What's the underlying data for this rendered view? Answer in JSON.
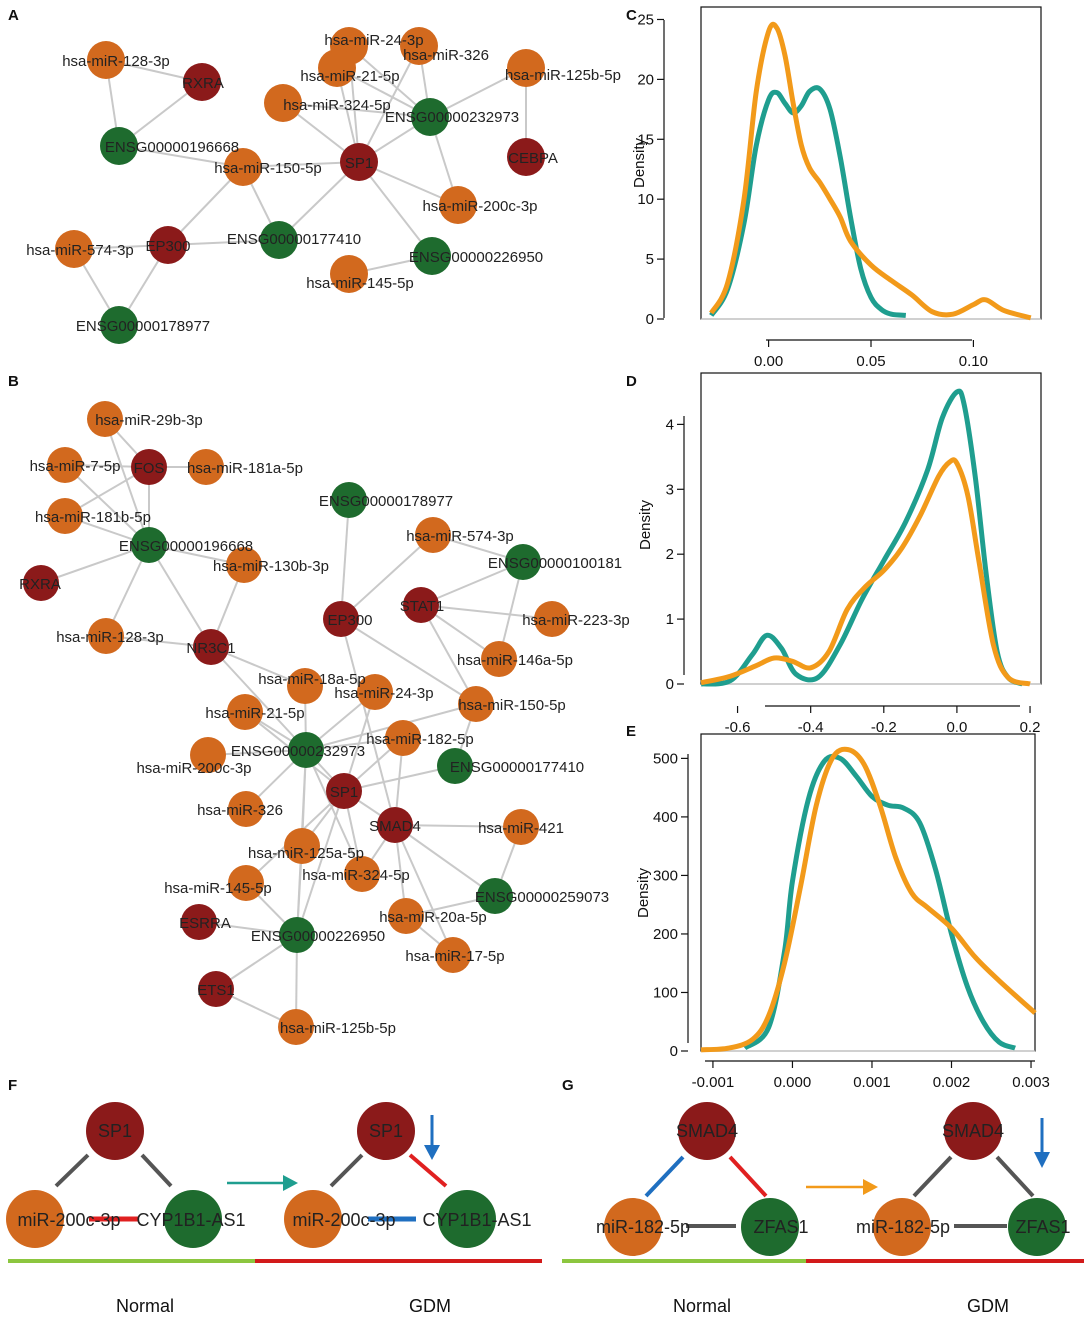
{
  "colors": {
    "mirna": "#d2691e",
    "gene": "#8b1a1a",
    "lnc": "#1e6b2e",
    "edge": "#c9c9c9",
    "teal": "#1f9e8f",
    "orange": "#f29a1a",
    "pos": "#e02020",
    "neg": "#1f6fc0",
    "neutral": "#555555",
    "normal_bar": "#8cc63f",
    "gdm_bar": "#d21a1a",
    "down_arrow": "#1f6fc0"
  },
  "panels": {
    "A": "A",
    "B": "B",
    "C": "C",
    "D": "D",
    "E": "E",
    "F": "F",
    "G": "G"
  },
  "network_a": {
    "nodes": [
      {
        "id": "a1",
        "label": "hsa-miR-128-3p",
        "type": "mirna"
      },
      {
        "id": "a2",
        "label": "RXRA",
        "type": "gene"
      },
      {
        "id": "a3",
        "label": "ENSG00000196668",
        "type": "lnc"
      },
      {
        "id": "a4",
        "label": "hsa-miR-24-3p",
        "type": "mirna"
      },
      {
        "id": "a5",
        "label": "hsa-miR-326",
        "type": "mirna"
      },
      {
        "id": "a6",
        "label": "hsa-miR-21-5p",
        "type": "mirna"
      },
      {
        "id": "a7",
        "label": "hsa-miR-125b-5p",
        "type": "mirna"
      },
      {
        "id": "a8",
        "label": "hsa-miR-324-5p",
        "type": "mirna"
      },
      {
        "id": "a9",
        "label": "ENSG00000232973",
        "type": "lnc"
      },
      {
        "id": "a10",
        "label": "CEBPA",
        "type": "gene"
      },
      {
        "id": "a11",
        "label": "hsa-miR-150-5p",
        "type": "mirna"
      },
      {
        "id": "a12",
        "label": "SP1",
        "type": "gene"
      },
      {
        "id": "a13",
        "label": "hsa-miR-200c-3p",
        "type": "mirna"
      },
      {
        "id": "a14",
        "label": "hsa-miR-574-3p",
        "type": "mirna"
      },
      {
        "id": "a15",
        "label": "EP300",
        "type": "gene"
      },
      {
        "id": "a16",
        "label": "ENSG00000177410",
        "type": "lnc"
      },
      {
        "id": "a17",
        "label": "ENSG00000226950",
        "type": "lnc"
      },
      {
        "id": "a18",
        "label": "hsa-miR-145-5p",
        "type": "mirna"
      },
      {
        "id": "a19",
        "label": "ENSG00000178977",
        "type": "lnc"
      }
    ],
    "edges": [
      [
        "a1",
        "a2"
      ],
      [
        "a1",
        "a3"
      ],
      [
        "a2",
        "a3"
      ],
      [
        "a3",
        "a11"
      ],
      [
        "a11",
        "a12"
      ],
      [
        "a11",
        "a15"
      ],
      [
        "a11",
        "a16"
      ],
      [
        "a14",
        "a15"
      ],
      [
        "a14",
        "a19"
      ],
      [
        "a15",
        "a19"
      ],
      [
        "a15",
        "a16"
      ],
      [
        "a16",
        "a12"
      ],
      [
        "a12",
        "a4"
      ],
      [
        "a12",
        "a5"
      ],
      [
        "a12",
        "a6"
      ],
      [
        "a12",
        "a8"
      ],
      [
        "a12",
        "a9"
      ],
      [
        "a12",
        "a13"
      ],
      [
        "a12",
        "a17"
      ],
      [
        "a4",
        "a9"
      ],
      [
        "a5",
        "a9"
      ],
      [
        "a6",
        "a9"
      ],
      [
        "a8",
        "a9"
      ],
      [
        "a7",
        "a9"
      ],
      [
        "a7",
        "a10"
      ],
      [
        "a9",
        "a13"
      ],
      [
        "a17",
        "a18"
      ]
    ]
  },
  "network_b": {
    "nodes": [
      {
        "id": "b1",
        "label": "hsa-miR-29b-3p",
        "type": "mirna"
      },
      {
        "id": "b2",
        "label": "hsa-miR-7-5p",
        "type": "mirna"
      },
      {
        "id": "b3",
        "label": "FOS",
        "type": "gene"
      },
      {
        "id": "b4",
        "label": "hsa-miR-181a-5p",
        "type": "mirna"
      },
      {
        "id": "b5",
        "label": "hsa-miR-181b-5p",
        "type": "mirna"
      },
      {
        "id": "b6",
        "label": "ENSG00000196668",
        "type": "lnc"
      },
      {
        "id": "b7",
        "label": "ENSG00000178977",
        "type": "lnc"
      },
      {
        "id": "b8",
        "label": "hsa-miR-574-3p",
        "type": "mirna"
      },
      {
        "id": "b9",
        "label": "hsa-miR-130b-3p",
        "type": "mirna"
      },
      {
        "id": "b10",
        "label": "ENSG00000100181",
        "type": "lnc"
      },
      {
        "id": "b11",
        "label": "RXRA",
        "type": "gene"
      },
      {
        "id": "b12",
        "label": "STAT1",
        "type": "gene"
      },
      {
        "id": "b13",
        "label": "hsa-miR-223-3p",
        "type": "mirna"
      },
      {
        "id": "b14",
        "label": "EP300",
        "type": "gene"
      },
      {
        "id": "b15",
        "label": "hsa-miR-128-3p",
        "type": "mirna"
      },
      {
        "id": "b16",
        "label": "NR3C1",
        "type": "gene"
      },
      {
        "id": "b17",
        "label": "hsa-miR-146a-5p",
        "type": "mirna"
      },
      {
        "id": "b18",
        "label": "hsa-miR-18a-5p",
        "type": "mirna"
      },
      {
        "id": "b19",
        "label": "hsa-miR-24-3p",
        "type": "mirna"
      },
      {
        "id": "b20",
        "label": "hsa-miR-21-5p",
        "type": "mirna"
      },
      {
        "id": "b21",
        "label": "hsa-miR-150-5p",
        "type": "mirna"
      },
      {
        "id": "b22",
        "label": "hsa-miR-182-5p",
        "type": "mirna"
      },
      {
        "id": "b23",
        "label": "ENSG00000232973",
        "type": "lnc"
      },
      {
        "id": "b24",
        "label": "hsa-miR-200c-3p",
        "type": "mirna"
      },
      {
        "id": "b25",
        "label": "ENSG00000177410",
        "type": "lnc"
      },
      {
        "id": "b26",
        "label": "SP1",
        "type": "gene"
      },
      {
        "id": "b27",
        "label": "hsa-miR-326",
        "type": "mirna"
      },
      {
        "id": "b28",
        "label": "SMAD4",
        "type": "gene"
      },
      {
        "id": "b29",
        "label": "hsa-miR-421",
        "type": "mirna"
      },
      {
        "id": "b30",
        "label": "hsa-miR-125a-5p",
        "type": "mirna"
      },
      {
        "id": "b31",
        "label": "hsa-miR-324-5p",
        "type": "mirna"
      },
      {
        "id": "b32",
        "label": "hsa-miR-145-5p",
        "type": "mirna"
      },
      {
        "id": "b33",
        "label": "ENSG00000259073",
        "type": "lnc"
      },
      {
        "id": "b34",
        "label": "hsa-miR-20a-5p",
        "type": "mirna"
      },
      {
        "id": "b35",
        "label": "ESRRA",
        "type": "gene"
      },
      {
        "id": "b36",
        "label": "ENSG00000226950",
        "type": "lnc"
      },
      {
        "id": "b37",
        "label": "hsa-miR-17-5p",
        "type": "mirna"
      },
      {
        "id": "b38",
        "label": "ETS1",
        "type": "gene"
      },
      {
        "id": "b39",
        "label": "hsa-miR-125b-5p",
        "type": "mirna"
      }
    ],
    "edges": [
      [
        "b1",
        "b3"
      ],
      [
        "b1",
        "b6"
      ],
      [
        "b2",
        "b3"
      ],
      [
        "b2",
        "b6"
      ],
      [
        "b3",
        "b4"
      ],
      [
        "b3",
        "b6"
      ],
      [
        "b5",
        "b3"
      ],
      [
        "b5",
        "b6"
      ],
      [
        "b6",
        "b11"
      ],
      [
        "b6",
        "b15"
      ],
      [
        "b6",
        "b9"
      ],
      [
        "b6",
        "b16"
      ],
      [
        "b15",
        "b16"
      ],
      [
        "b9",
        "b16"
      ],
      [
        "b16",
        "b18"
      ],
      [
        "b16",
        "b23"
      ],
      [
        "b7",
        "b14"
      ],
      [
        "b8",
        "b14"
      ],
      [
        "b8",
        "b10"
      ],
      [
        "b10",
        "b12"
      ],
      [
        "b10",
        "b17"
      ],
      [
        "b12",
        "b13"
      ],
      [
        "b12",
        "b17"
      ],
      [
        "b12",
        "b21"
      ],
      [
        "b14",
        "b21"
      ],
      [
        "b14",
        "b28"
      ],
      [
        "b18",
        "b23"
      ],
      [
        "b19",
        "b23"
      ],
      [
        "b19",
        "b26"
      ],
      [
        "b20",
        "b23"
      ],
      [
        "b20",
        "b26"
      ],
      [
        "b21",
        "b23"
      ],
      [
        "b21",
        "b25"
      ],
      [
        "b22",
        "b23"
      ],
      [
        "b22",
        "b28"
      ],
      [
        "b23",
        "b24"
      ],
      [
        "b23",
        "b26"
      ],
      [
        "b23",
        "b27"
      ],
      [
        "b23",
        "b30"
      ],
      [
        "b23",
        "b31"
      ],
      [
        "b23",
        "b36"
      ],
      [
        "b26",
        "b25"
      ],
      [
        "b26",
        "b28"
      ],
      [
        "b26",
        "b30"
      ],
      [
        "b26",
        "b31"
      ],
      [
        "b26",
        "b32"
      ],
      [
        "b26",
        "b36"
      ],
      [
        "b26",
        "b22"
      ],
      [
        "b28",
        "b29"
      ],
      [
        "b28",
        "b33"
      ],
      [
        "b28",
        "b34"
      ],
      [
        "b28",
        "b37"
      ],
      [
        "b28",
        "b31"
      ],
      [
        "b29",
        "b33"
      ],
      [
        "b33",
        "b34"
      ],
      [
        "b34",
        "b37"
      ],
      [
        "b32",
        "b36"
      ],
      [
        "b35",
        "b36"
      ],
      [
        "b36",
        "b38"
      ],
      [
        "b38",
        "b39"
      ],
      [
        "b36",
        "b39"
      ],
      [
        "b30",
        "b36"
      ]
    ]
  },
  "chart_data": [
    {
      "panel": "C",
      "type": "line",
      "ylabel": "Density",
      "xlabel": "",
      "xlim": [
        -0.033,
        0.133
      ],
      "ylim": [
        0,
        25
      ],
      "xticks": [
        "0.00",
        "0.05",
        "0.10"
      ],
      "xtick_values": [
        0,
        0.05,
        0.1
      ],
      "yticks": [
        "0",
        "5",
        "10",
        "15",
        "20",
        "25"
      ],
      "ytick_values": [
        0,
        5,
        10,
        15,
        20,
        25
      ],
      "series": [
        {
          "name": "teal",
          "color": "#1f9e8f",
          "x": [
            -0.028,
            -0.02,
            -0.012,
            -0.006,
            0.0,
            0.004,
            0.008,
            0.012,
            0.016,
            0.02,
            0.025,
            0.03,
            0.035,
            0.04,
            0.045,
            0.05,
            0.055,
            0.06,
            0.067
          ],
          "y": [
            0.3,
            2.5,
            8.0,
            14.5,
            18.3,
            18.9,
            18.0,
            17.2,
            17.8,
            19.0,
            19.2,
            17.5,
            13.5,
            8.5,
            4.2,
            1.8,
            0.8,
            0.4,
            0.3
          ]
        },
        {
          "name": "orange",
          "color": "#f29a1a",
          "x": [
            -0.028,
            -0.02,
            -0.012,
            -0.006,
            0.0,
            0.004,
            0.008,
            0.012,
            0.016,
            0.02,
            0.025,
            0.03,
            0.035,
            0.04,
            0.05,
            0.06,
            0.07,
            0.08,
            0.09,
            0.1,
            0.106,
            0.115,
            0.128
          ],
          "y": [
            0.5,
            3.0,
            10.0,
            19.0,
            24.0,
            24.3,
            22.0,
            18.0,
            14.5,
            12.6,
            11.4,
            10.0,
            8.5,
            6.5,
            4.5,
            3.2,
            2.0,
            0.6,
            0.4,
            1.2,
            1.6,
            0.7,
            0.1
          ]
        }
      ]
    },
    {
      "panel": "D",
      "type": "line",
      "ylabel": "Density",
      "xlabel": "",
      "xlim": [
        -0.7,
        0.23
      ],
      "ylim": [
        0,
        4.6
      ],
      "xticks": [
        "-0.6",
        "-0.4",
        "-0.2",
        "0.0",
        "0.2"
      ],
      "xtick_values": [
        -0.6,
        -0.4,
        -0.2,
        0,
        0.2
      ],
      "yticks": [
        "0",
        "1",
        "2",
        "3",
        "4"
      ],
      "ytick_values": [
        0,
        1,
        2,
        3,
        4
      ],
      "series": [
        {
          "name": "teal",
          "color": "#1f9e8f",
          "x": [
            -0.7,
            -0.62,
            -0.56,
            -0.52,
            -0.48,
            -0.44,
            -0.38,
            -0.32,
            -0.26,
            -0.2,
            -0.14,
            -0.08,
            -0.04,
            0.0,
            0.02,
            0.05,
            0.08,
            0.11,
            0.14,
            0.18
          ],
          "y": [
            0.0,
            0.05,
            0.45,
            0.75,
            0.55,
            0.15,
            0.1,
            0.6,
            1.3,
            1.9,
            2.5,
            3.3,
            4.1,
            4.5,
            4.3,
            3.2,
            1.7,
            0.5,
            0.1,
            0.0
          ]
        },
        {
          "name": "orange",
          "color": "#f29a1a",
          "x": [
            -0.7,
            -0.62,
            -0.55,
            -0.5,
            -0.45,
            -0.4,
            -0.35,
            -0.3,
            -0.25,
            -0.2,
            -0.15,
            -0.1,
            -0.05,
            -0.02,
            0.0,
            0.03,
            0.06,
            0.1,
            0.14,
            0.2
          ],
          "y": [
            0.02,
            0.12,
            0.28,
            0.4,
            0.35,
            0.25,
            0.5,
            1.15,
            1.5,
            1.75,
            2.1,
            2.6,
            3.2,
            3.42,
            3.4,
            2.9,
            1.9,
            0.6,
            0.1,
            0.0
          ]
        }
      ]
    },
    {
      "panel": "E",
      "type": "line",
      "ylabel": "Density",
      "xlabel": "",
      "xlim": [
        -0.00115,
        0.00305
      ],
      "ylim": [
        0,
        520
      ],
      "xticks": [
        "-0.001",
        "0.000",
        "0.001",
        "0.002",
        "0.003"
      ],
      "xtick_values": [
        -0.001,
        0,
        0.001,
        0.002,
        0.003
      ],
      "yticks": [
        "0",
        "100",
        "200",
        "300",
        "400",
        "500"
      ],
      "ytick_values": [
        0,
        100,
        200,
        300,
        400,
        500
      ],
      "series": [
        {
          "name": "teal",
          "color": "#1f9e8f",
          "x": [
            -0.0006,
            -0.0003,
            -0.0001,
            0.0,
            0.0002,
            0.0004,
            0.0006,
            0.0008,
            0.001,
            0.0012,
            0.0014,
            0.0016,
            0.0018,
            0.002,
            0.0022,
            0.0024,
            0.0026,
            0.0028
          ],
          "y": [
            5,
            40,
            170,
            290,
            430,
            495,
            500,
            470,
            435,
            420,
            415,
            390,
            310,
            200,
            110,
            50,
            15,
            5
          ]
        },
        {
          "name": "orange",
          "color": "#f29a1a",
          "x": [
            -0.00115,
            -0.0008,
            -0.0005,
            -0.0003,
            -0.0001,
            0.0001,
            0.0003,
            0.0005,
            0.0007,
            0.0009,
            0.0011,
            0.0013,
            0.0015,
            0.0017,
            0.002,
            0.0023,
            0.0026,
            0.00305
          ],
          "y": [
            2,
            5,
            20,
            60,
            150,
            280,
            420,
            500,
            515,
            490,
            420,
            330,
            270,
            245,
            210,
            160,
            120,
            65
          ]
        }
      ]
    }
  ],
  "panel_f": {
    "top_gene": "SP1",
    "left_mirna": "miR-200c-3p",
    "right_lnc": "CYP1B1-AS1",
    "normal_label": "Normal",
    "gdm_label": "GDM"
  },
  "panel_g": {
    "top_gene": "SMAD4",
    "left_mirna": "miR-182-5p",
    "right_lnc": "ZFAS1",
    "normal_label": "Normal",
    "gdm_label": "GDM"
  }
}
